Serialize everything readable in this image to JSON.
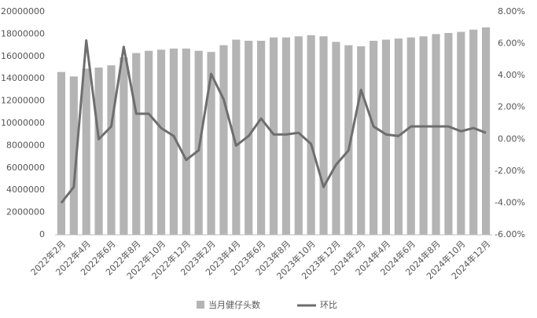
{
  "chart_data": {
    "type": "bar-line",
    "categories": [
      "2022年2月",
      null,
      "2022年4月",
      null,
      "2022年6月",
      null,
      "2022年8月",
      null,
      "2022年10月",
      null,
      "2022年12月",
      null,
      "2023年2月",
      null,
      "2023年4月",
      null,
      "2023年6月",
      null,
      "2023年8月",
      null,
      "2023年10月",
      null,
      "2023年12月",
      null,
      "2024年2月",
      null,
      "2024年4月",
      null,
      "2024年6月",
      null,
      "2024年8月",
      null,
      "2024年10月",
      null,
      "2024年12月"
    ],
    "series": [
      {
        "name": "当月健仔头数",
        "type": "bar",
        "color": "#b4b4b4",
        "values": [
          14600000,
          14200000,
          14900000,
          15000000,
          15200000,
          15900000,
          16300000,
          16500000,
          16600000,
          16700000,
          16700000,
          16500000,
          16400000,
          17000000,
          17500000,
          17400000,
          17400000,
          17700000,
          17700000,
          17800000,
          17900000,
          17800000,
          17300000,
          17000000,
          16900000,
          17400000,
          17500000,
          17600000,
          17700000,
          17800000,
          18000000,
          18100000,
          18200000,
          18400000,
          18600000
        ]
      },
      {
        "name": "环比",
        "type": "line",
        "axis": "y2",
        "color": "#6e6e6e",
        "values": [
          -4.0,
          -3.0,
          6.2,
          0.0,
          0.8,
          5.8,
          1.6,
          1.6,
          0.7,
          0.2,
          -1.3,
          -0.7,
          4.1,
          2.5,
          -0.4,
          0.2,
          1.3,
          0.3,
          0.3,
          0.4,
          -0.3,
          -3.0,
          -1.6,
          -0.7,
          3.1,
          0.8,
          0.3,
          0.2,
          0.8,
          0.8,
          0.8,
          0.8,
          0.5,
          0.7,
          0.4
        ]
      }
    ],
    "ylim": [
      0,
      20000000
    ],
    "yticks": [
      0,
      2000000,
      4000000,
      6000000,
      8000000,
      10000000,
      12000000,
      14000000,
      16000000,
      18000000,
      20000000
    ],
    "y2lim": [
      -6,
      8
    ],
    "y2ticks": [
      {
        "value": -6,
        "label": "-6.00%"
      },
      {
        "value": -4,
        "label": "-4.00%"
      },
      {
        "value": -2,
        "label": "-2.00%"
      },
      {
        "value": 0,
        "label": "0.00%"
      },
      {
        "value": 2,
        "label": "2.00%"
      },
      {
        "value": 4,
        "label": "4.00%"
      },
      {
        "value": 6,
        "label": "6.00%"
      },
      {
        "value": 8,
        "label": "8.00%"
      }
    ],
    "grid": false,
    "legend": "bottom"
  }
}
